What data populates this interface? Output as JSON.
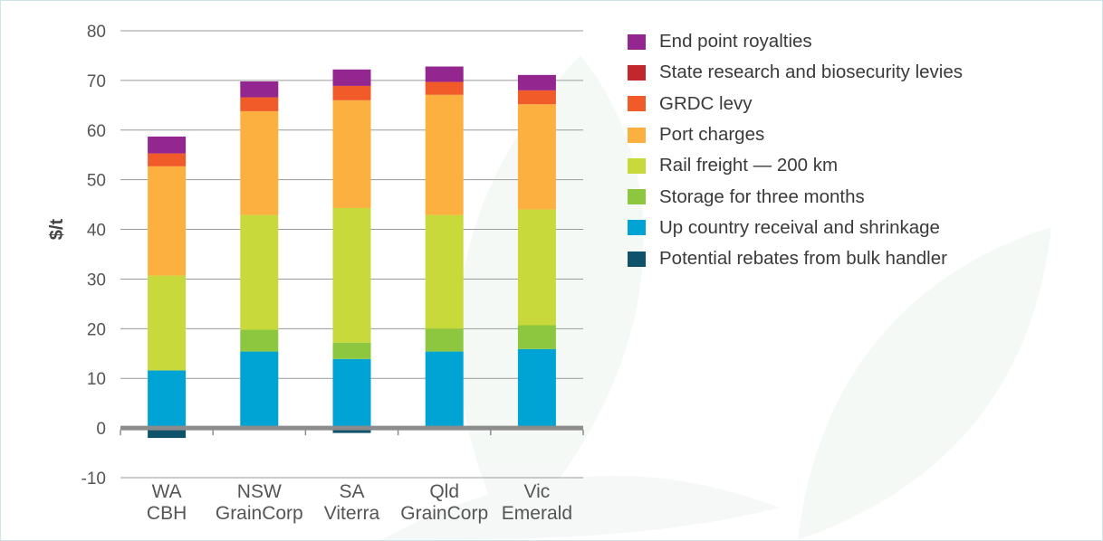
{
  "chart_data": {
    "type": "bar",
    "stacked": true,
    "title": "",
    "xlabel": "",
    "ylabel": "$/t",
    "ylim": [
      -10,
      80
    ],
    "yticks": [
      -10,
      0,
      10,
      20,
      30,
      40,
      50,
      60,
      70,
      80
    ],
    "grid": true,
    "legend_position": "right",
    "categories": [
      [
        "WA",
        "CBH"
      ],
      [
        "NSW",
        "GrainCorp"
      ],
      [
        "SA",
        "Viterra"
      ],
      [
        "Qld",
        "GrainCorp"
      ],
      [
        "Vic",
        "Emerald"
      ]
    ],
    "series": [
      {
        "name": "Potential rebates from bulk handler",
        "color": "#0f536b",
        "values": [
          -2.0,
          0,
          -1.0,
          0,
          0
        ]
      },
      {
        "name": "Up country receival and shrinkage",
        "color": "#00a4d4",
        "values": [
          11.6,
          15.4,
          13.9,
          15.4,
          15.9
        ]
      },
      {
        "name": "Storage for three months",
        "color": "#8dc63f",
        "values": [
          0,
          4.4,
          3.3,
          4.6,
          4.8
        ]
      },
      {
        "name": "Rail freight — 200 km",
        "color": "#c7d93b",
        "values": [
          19.1,
          23.1,
          27.1,
          22.9,
          23.3
        ]
      },
      {
        "name": "Port charges",
        "color": "#fbb040",
        "values": [
          22.0,
          20.9,
          21.7,
          24.2,
          21.2
        ]
      },
      {
        "name": "GRDC levy",
        "color": "#f15a29",
        "values": [
          2.6,
          2.8,
          2.9,
          2.6,
          2.8
        ]
      },
      {
        "name": "State research and biosecurity levies",
        "color": "#c1272d",
        "values": [
          0,
          0,
          0,
          0,
          0
        ]
      },
      {
        "name": "End point royalties",
        "color": "#93278f",
        "values": [
          3.4,
          3.2,
          3.3,
          3.1,
          3.1
        ]
      }
    ]
  }
}
